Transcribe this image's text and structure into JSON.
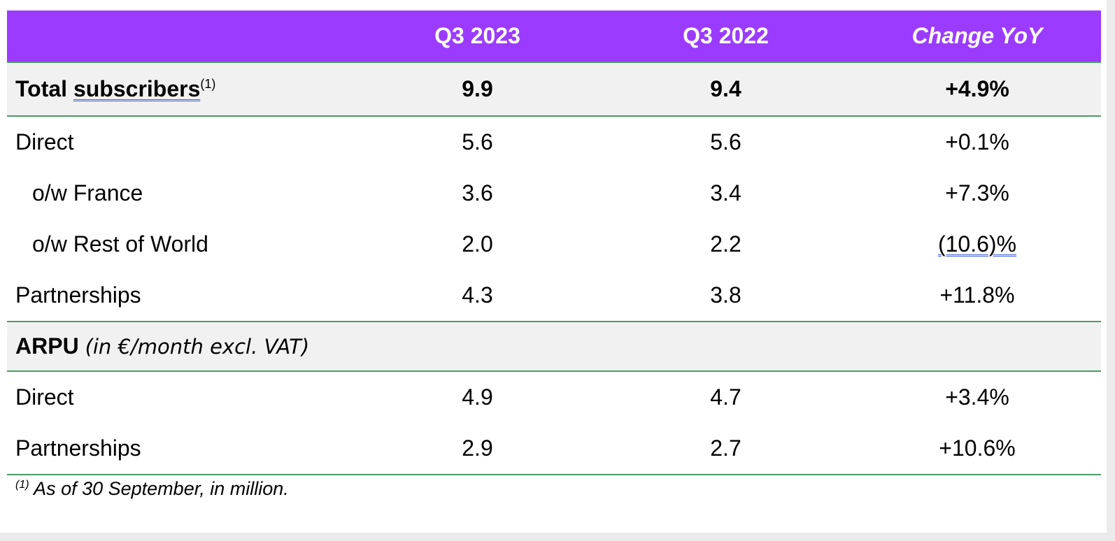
{
  "header": {
    "label": "",
    "col1": "Q3 2023",
    "col2": "Q3 2022",
    "col3": "Change YoY"
  },
  "total": {
    "label_prefix": "Total ",
    "label_word": "subscribers",
    "footnote_ref": "(1)",
    "q3_2023": "9.9",
    "q3_2022": "9.4",
    "change": "+4.9%"
  },
  "subscriber_rows": [
    {
      "label": "Direct",
      "q3_2023": "5.6",
      "q3_2022": "5.6",
      "change": "+0.1%"
    },
    {
      "label": "o/w France",
      "q3_2023": "3.6",
      "q3_2022": "3.4",
      "change": "+7.3%"
    },
    {
      "label": "o/w Rest of World",
      "q3_2023": "2.0",
      "q3_2022": "2.2",
      "change": "(10.6)%"
    },
    {
      "label": "Partnerships",
      "q3_2023": "4.3",
      "q3_2022": "3.8",
      "change": "+11.8%"
    }
  ],
  "arpu": {
    "label": "ARPU",
    "unit": "(in €/month excl. VAT)"
  },
  "arpu_rows": [
    {
      "label": "Direct",
      "q3_2023": "4.9",
      "q3_2022": "4.7",
      "change": "+3.4%"
    },
    {
      "label": "Partnerships",
      "q3_2023": "2.9",
      "q3_2022": "2.7",
      "change": "+10.6%"
    }
  ],
  "footnote": {
    "ref": "(1)",
    "text": " As of 30 September, in million."
  },
  "colors": {
    "header_bg": "#9b3bff",
    "rule": "#4a9a66",
    "band_bg": "#f1f1f1"
  }
}
